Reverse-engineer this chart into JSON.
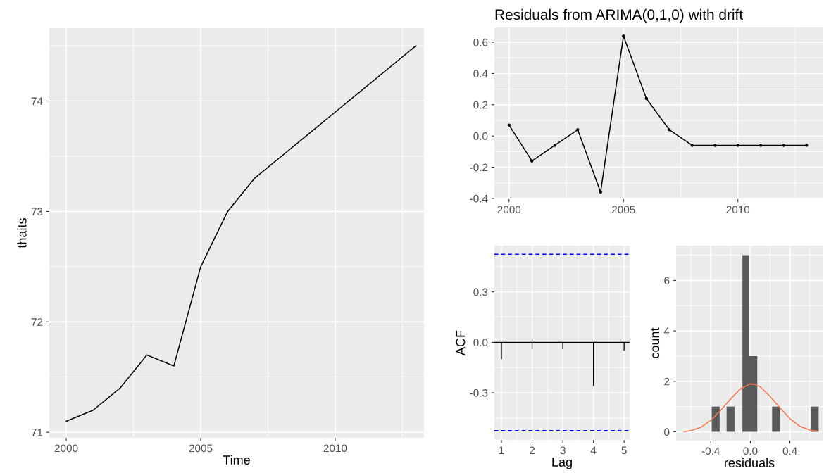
{
  "chart_data": [
    {
      "type": "line",
      "xlabel": "Time",
      "ylabel": "thaits",
      "grid": true,
      "x": [
        2000,
        2001,
        2002,
        2003,
        2004,
        2005,
        2006,
        2007,
        2008,
        2009,
        2010,
        2011,
        2012,
        2013
      ],
      "series": [
        {
          "color": "#000000",
          "values": [
            71.1,
            71.2,
            71.4,
            71.7,
            71.6,
            72.5,
            73.0,
            73.3,
            73.5,
            73.7,
            73.9,
            74.1,
            74.3,
            74.5
          ]
        }
      ],
      "xlim": [
        1999.37,
        2013.3
      ],
      "xticks": [
        2000,
        2005,
        2010
      ],
      "ylim": [
        70.95,
        74.66
      ],
      "yticks": [
        71,
        72,
        73,
        74
      ]
    },
    {
      "type": "line",
      "title": "Residuals from ARIMA(0,1,0) with drift",
      "grid": true,
      "marker": "circle",
      "x": [
        2000,
        2001,
        2002,
        2003,
        2004,
        2005,
        2006,
        2007,
        2008,
        2009,
        2010,
        2011,
        2012,
        2013
      ],
      "series": [
        {
          "color": "#000000",
          "values": [
            0.07,
            -0.16,
            -0.06,
            0.04,
            -0.36,
            0.64,
            0.24,
            0.04,
            -0.06,
            -0.06,
            -0.06,
            -0.06,
            -0.06,
            -0.06
          ]
        }
      ],
      "xlim": [
        1999.36,
        2013.7
      ],
      "xticks": [
        2000,
        2005,
        2010
      ],
      "ylim": [
        -0.405,
        0.695
      ],
      "yticks": [
        {
          "value": -0.4,
          "label": "-0.4"
        },
        {
          "value": -0.2,
          "label": "-0.2"
        },
        {
          "value": 0.0,
          "label": "0.0"
        },
        0.2,
        0.4,
        0.6
      ]
    },
    {
      "type": "bar",
      "xlabel": "Lag",
      "ylabel": "ACF",
      "grid": true,
      "x": [
        1,
        2,
        3,
        4,
        5
      ],
      "series": [
        {
          "color": "#000000",
          "values": [
            -0.1,
            -0.04,
            -0.04,
            -0.26,
            -0.05
          ]
        }
      ],
      "ref_lines": [
        {
          "axis": "y",
          "value": 0.524,
          "color": "#0000ff",
          "line_style": "dashed"
        },
        {
          "axis": "y",
          "value": -0.524,
          "color": "#0000ff",
          "line_style": "dashed"
        },
        {
          "axis": "y",
          "value": 0,
          "color": "#000000",
          "line_style": "solid"
        }
      ],
      "xlim": [
        0.77,
        5.18
      ],
      "xticks": [
        1,
        2,
        3,
        4,
        5
      ],
      "ylim": [
        -0.58,
        0.575
      ],
      "yticks": [
        {
          "value": -0.3,
          "label": "-0.3"
        },
        {
          "value": 0.0,
          "label": "0.0"
        },
        0.3
      ]
    },
    {
      "type": "histogram",
      "xlabel": "residuals",
      "ylabel": "count",
      "grid": true,
      "color": "#595959",
      "bins": [
        -0.39,
        -0.31,
        -0.24,
        -0.16,
        -0.08,
        -0.01,
        0.07,
        0.22,
        0.3,
        0.61,
        0.69
      ],
      "values": [
        1,
        0,
        1,
        0,
        7,
        3,
        0,
        1,
        0,
        1
      ],
      "series": [
        {
          "type": "line",
          "color": "#f8764f",
          "x": [
            -0.67,
            -0.6,
            -0.5,
            -0.4,
            -0.3,
            -0.2,
            -0.1,
            0.0,
            0.05,
            0.1,
            0.2,
            0.3,
            0.4,
            0.5,
            0.6,
            0.68
          ],
          "values": [
            0.0,
            0.05,
            0.18,
            0.45,
            0.85,
            1.3,
            1.7,
            1.9,
            1.88,
            1.78,
            1.4,
            0.95,
            0.52,
            0.22,
            0.07,
            0.02
          ]
        }
      ],
      "xlim": [
        -0.75,
        0.73
      ],
      "xticks": [
        {
          "value": -0.4,
          "label": "-0.4"
        },
        {
          "value": 0.0,
          "label": "0.0"
        },
        0.4
      ],
      "ylim": [
        -0.35,
        7.38
      ],
      "yticks": [
        0,
        2,
        4,
        6
      ]
    }
  ]
}
